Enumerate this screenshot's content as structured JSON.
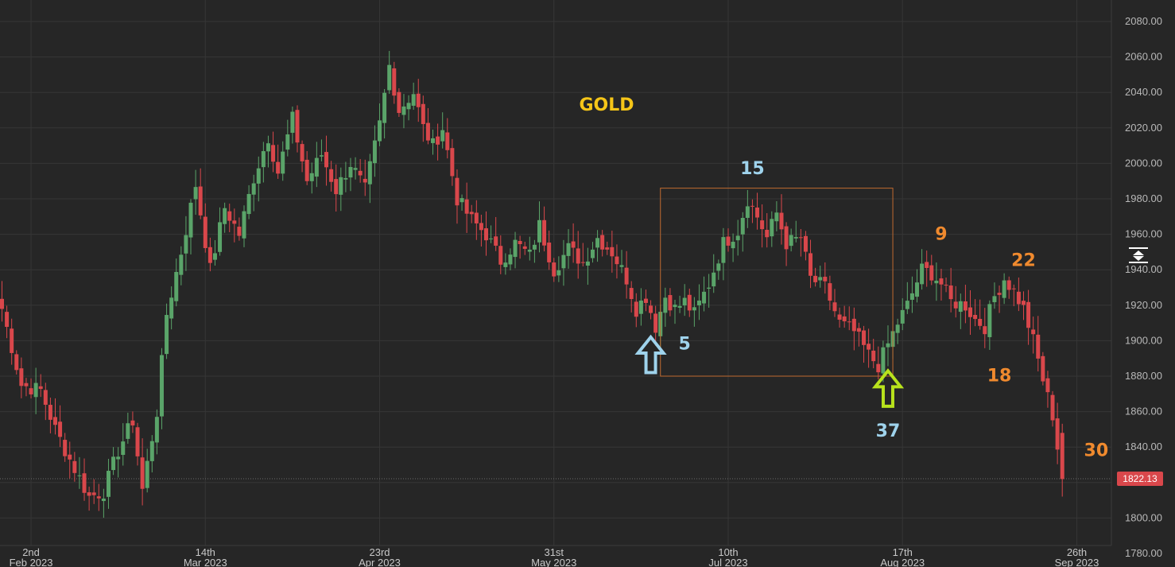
{
  "chart_data": {
    "type": "candlestick",
    "title": "GOLD",
    "colors": {
      "background": "#262626",
      "grid": "#363636",
      "up": "#5aa469",
      "down": "#d9474b",
      "title": "#f5c518",
      "annotation_blue": "#9fd3ec",
      "annotation_orange": "#f08a2e",
      "arrow_green": "#b8e21c",
      "box": "#c06a30",
      "price_tag": "#d9474b"
    },
    "y_axis": {
      "min": 1780,
      "max": 2090,
      "ticks": [
        "2080.00",
        "2060.00",
        "2040.00",
        "2020.00",
        "2000.00",
        "1980.00",
        "1960.00",
        "1940.00",
        "1920.00",
        "1900.00",
        "1880.00",
        "1860.00",
        "1840.00",
        "1820.00",
        "1800.00",
        "1780.00"
      ]
    },
    "x_axis": {
      "labels": [
        {
          "day": "2nd",
          "month": "Feb 2023",
          "index": 6
        },
        {
          "day": "14th",
          "month": "Mar 2023",
          "index": 42
        },
        {
          "day": "23rd",
          "month": "Apr 2023",
          "index": 78
        },
        {
          "day": "31st",
          "month": "May 2023",
          "index": 114
        },
        {
          "day": "10th",
          "month": "Jul 2023",
          "index": 150
        },
        {
          "day": "17th",
          "month": "Aug 2023",
          "index": 186
        },
        {
          "day": "26th",
          "month": "Sep 2023",
          "index": 222
        }
      ]
    },
    "current_price": "1822.13",
    "current_price_value": 1822.13,
    "anchors": [
      [
        0,
        1918
      ],
      [
        4,
        1875
      ],
      [
        8,
        1872
      ],
      [
        11,
        1850
      ],
      [
        14,
        1833
      ],
      [
        18,
        1812
      ],
      [
        21,
        1815
      ],
      [
        24,
        1838
      ],
      [
        27,
        1855
      ],
      [
        29,
        1816
      ],
      [
        32,
        1860
      ],
      [
        34,
        1915
      ],
      [
        37,
        1950
      ],
      [
        40,
        1988
      ],
      [
        43,
        1940
      ],
      [
        46,
        1975
      ],
      [
        49,
        1960
      ],
      [
        52,
        1992
      ],
      [
        55,
        2015
      ],
      [
        57,
        1995
      ],
      [
        60,
        2025
      ],
      [
        63,
        1990
      ],
      [
        66,
        2005
      ],
      [
        69,
        1985
      ],
      [
        72,
        2000
      ],
      [
        75,
        1985
      ],
      [
        78,
        2022
      ],
      [
        80,
        2055
      ],
      [
        82,
        2030
      ],
      [
        85,
        2040
      ],
      [
        87,
        2020
      ],
      [
        89,
        2010
      ],
      [
        91,
        2020
      ],
      [
        94,
        1980
      ],
      [
        97,
        1968
      ],
      [
        100,
        1960
      ],
      [
        103,
        1945
      ],
      [
        106,
        1955
      ],
      [
        109,
        1948
      ],
      [
        111,
        1965
      ],
      [
        114,
        1940
      ],
      [
        117,
        1952
      ],
      [
        120,
        1944
      ],
      [
        123,
        1958
      ],
      [
        126,
        1950
      ],
      [
        129,
        1935
      ],
      [
        131,
        1918
      ],
      [
        133,
        1925
      ],
      [
        135,
        1908
      ],
      [
        137,
        1925
      ],
      [
        139,
        1918
      ],
      [
        141,
        1922
      ],
      [
        143,
        1915
      ],
      [
        146,
        1932
      ],
      [
        149,
        1955
      ],
      [
        152,
        1962
      ],
      [
        154,
        1980
      ],
      [
        156,
        1970
      ],
      [
        158,
        1958
      ],
      [
        160,
        1972
      ],
      [
        162,
        1955
      ],
      [
        165,
        1958
      ],
      [
        167,
        1935
      ],
      [
        170,
        1930
      ],
      [
        173,
        1910
      ],
      [
        176,
        1905
      ],
      [
        179,
        1892
      ],
      [
        181,
        1886
      ],
      [
        183,
        1898
      ],
      [
        185,
        1910
      ],
      [
        187,
        1920
      ],
      [
        190,
        1940
      ],
      [
        192,
        1938
      ],
      [
        194,
        1932
      ],
      [
        196,
        1922
      ],
      [
        199,
        1920
      ],
      [
        201,
        1912
      ],
      [
        203,
        1908
      ],
      [
        205,
        1925
      ],
      [
        207,
        1935
      ],
      [
        209,
        1928
      ],
      [
        211,
        1918
      ],
      [
        213,
        1900
      ],
      [
        215,
        1878
      ],
      [
        217,
        1858
      ],
      [
        219,
        1822
      ]
    ],
    "annotations": [
      {
        "text": "5",
        "color": "annotation_blue",
        "bar": 141,
        "price": 1895
      },
      {
        "text": "15",
        "color": "annotation_blue",
        "bar": 155,
        "price": 1994
      },
      {
        "text": "37",
        "color": "annotation_blue",
        "bar": 183,
        "price": 1846
      },
      {
        "text": "9",
        "color": "annotation_orange",
        "bar": 194,
        "price": 1957
      },
      {
        "text": "22",
        "color": "annotation_orange",
        "bar": 211,
        "price": 1942
      },
      {
        "text": "18",
        "color": "annotation_orange",
        "bar": 206,
        "price": 1877
      },
      {
        "text": "30",
        "color": "annotation_orange",
        "bar": 226,
        "price": 1835
      }
    ],
    "box": {
      "bar_start": 136,
      "bar_end": 184,
      "price_low": 1880,
      "price_high": 1986
    },
    "arrows": [
      {
        "color": "annotation_blue",
        "bar": 134,
        "price_top": 1902,
        "price_bottom": 1882
      },
      {
        "color": "arrow_green",
        "bar": 183,
        "price_top": 1883,
        "price_bottom": 1863
      }
    ]
  }
}
